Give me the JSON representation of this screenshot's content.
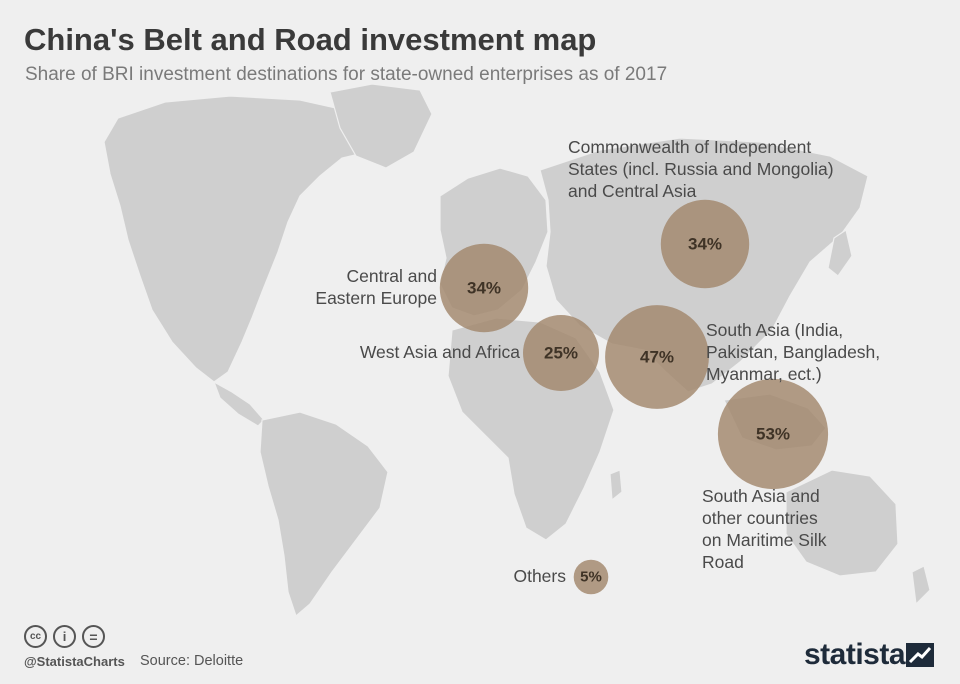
{
  "header": {
    "title": "China's Belt and Road investment map",
    "subtitle": "Share of BRI investment destinations for state-owned enterprises as of 2017"
  },
  "regions": [
    {
      "id": "cis",
      "label": "Commonwealth of Independent States (incl. Russia and Mongolia) and Central Asia",
      "label_lines": [
        "Commonwealth of Independent",
        "States (incl. Russia and Mongolia)",
        "and Central Asia"
      ],
      "share_text": "34%",
      "share": 34
    },
    {
      "id": "cee",
      "label": "Central and Eastern Europe",
      "label_lines": [
        "Central and",
        "Eastern Europe"
      ],
      "share_text": "34%",
      "share": 34
    },
    {
      "id": "wa",
      "label": "West Asia and Africa",
      "label_lines": [
        "West Asia and Africa"
      ],
      "share_text": "25%",
      "share": 25
    },
    {
      "id": "sa",
      "label": "South Asia (India, Pakistan, Bangladesh, Myanmar, ect.)",
      "label_lines": [
        "South Asia (India,",
        "Pakistan, Bangladesh,",
        "Myanmar, ect.)"
      ],
      "share_text": "47%",
      "share": 47
    },
    {
      "id": "sea",
      "label": "South Asia and other countries on Maritime Silk Road",
      "label_lines": [
        "South Asia and",
        "other countries",
        "on Maritime Silk",
        "Road"
      ],
      "share_text": "53%",
      "share": 53
    },
    {
      "id": "oth",
      "label": "Others",
      "label_lines": [
        "Others"
      ],
      "share_text": "5%",
      "share": 5
    }
  ],
  "footer": {
    "license_icons": [
      "cc-icon",
      "attribution-icon",
      "no-derivatives-icon"
    ],
    "cc_glyph": "cc",
    "by_glyph": "i",
    "nd_glyph": "=",
    "handle": "@StatistaCharts",
    "source": "Source: Deloitte",
    "brand": "statista"
  },
  "colors": {
    "background": "#efefef",
    "land": "#cfcfcf",
    "bubble": "#a08569",
    "text": "#4a4a4a"
  }
}
